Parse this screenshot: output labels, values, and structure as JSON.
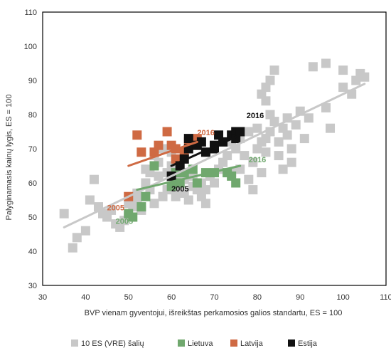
{
  "chart_data": {
    "type": "scatter",
    "title": "",
    "xlabel": "BVP vienam gyventojui, išreikštas perkamosios galios standartu, ES = 100",
    "ylabel": "Palyginamasis kainų lygis, ES = 100",
    "xlim": [
      30,
      110
    ],
    "ylim": [
      30,
      110
    ],
    "xticks": [
      "30",
      "40",
      "50",
      "60",
      "70",
      "80",
      "90",
      "100",
      "110"
    ],
    "yticks": [
      "30",
      "40",
      "50",
      "60",
      "70",
      "80",
      "90",
      "100",
      "110"
    ],
    "grid": false,
    "legend_position": "bottom",
    "series": [
      {
        "name": "10 ES (VRE) šalių",
        "color": "#c8c8c8",
        "points": [
          [
            35,
            51
          ],
          [
            37,
            41
          ],
          [
            38,
            44
          ],
          [
            40,
            46
          ],
          [
            41,
            55
          ],
          [
            42,
            61
          ],
          [
            43,
            53
          ],
          [
            44,
            51
          ],
          [
            45,
            50
          ],
          [
            46,
            52
          ],
          [
            47,
            48
          ],
          [
            48,
            47
          ],
          [
            49,
            49
          ],
          [
            50,
            50
          ],
          [
            50,
            54
          ],
          [
            51,
            53
          ],
          [
            52,
            55
          ],
          [
            52,
            57
          ],
          [
            53,
            52
          ],
          [
            54,
            60
          ],
          [
            54,
            64
          ],
          [
            55,
            58
          ],
          [
            55,
            63
          ],
          [
            56,
            54
          ],
          [
            56,
            68
          ],
          [
            57,
            62
          ],
          [
            57,
            66
          ],
          [
            58,
            56
          ],
          [
            58,
            70
          ],
          [
            59,
            58
          ],
          [
            59,
            63
          ],
          [
            60,
            60
          ],
          [
            60,
            65
          ],
          [
            60,
            69
          ],
          [
            61,
            56
          ],
          [
            61,
            62
          ],
          [
            62,
            58
          ],
          [
            62,
            60
          ],
          [
            63,
            57
          ],
          [
            63,
            61
          ],
          [
            64,
            55
          ],
          [
            65,
            59
          ],
          [
            65,
            62
          ],
          [
            66,
            58
          ],
          [
            67,
            56
          ],
          [
            67,
            60
          ],
          [
            68,
            54
          ],
          [
            68,
            58
          ],
          [
            69,
            62
          ],
          [
            70,
            60
          ],
          [
            71,
            64
          ],
          [
            72,
            66
          ],
          [
            73,
            68
          ],
          [
            74,
            63
          ],
          [
            74,
            72
          ],
          [
            75,
            70
          ],
          [
            76,
            64
          ],
          [
            76,
            73
          ],
          [
            77,
            68
          ],
          [
            78,
            75
          ],
          [
            78,
            61
          ],
          [
            79,
            58
          ],
          [
            79,
            66
          ],
          [
            80,
            70
          ],
          [
            80,
            76
          ],
          [
            81,
            63
          ],
          [
            81,
            72
          ],
          [
            81,
            86
          ],
          [
            82,
            69
          ],
          [
            82,
            73
          ],
          [
            82,
            84
          ],
          [
            82,
            88
          ],
          [
            83,
            75
          ],
          [
            83,
            80
          ],
          [
            83,
            90
          ],
          [
            84,
            78
          ],
          [
            84,
            93
          ],
          [
            85,
            68
          ],
          [
            85,
            72
          ],
          [
            86,
            64
          ],
          [
            86,
            76
          ],
          [
            87,
            74
          ],
          [
            87,
            79
          ],
          [
            88,
            66
          ],
          [
            88,
            70
          ],
          [
            89,
            77
          ],
          [
            90,
            81
          ],
          [
            91,
            73
          ],
          [
            92,
            79
          ],
          [
            93,
            94
          ],
          [
            96,
            82
          ],
          [
            96,
            95
          ],
          [
            97,
            76
          ],
          [
            100,
            88
          ],
          [
            100,
            93
          ],
          [
            102,
            86
          ],
          [
            103,
            90
          ],
          [
            104,
            92
          ],
          [
            105,
            91
          ]
        ]
      },
      {
        "name": "Lietuva",
        "color": "#70a86e",
        "points": [
          [
            50,
            51
          ],
          [
            51,
            50
          ],
          [
            53,
            53
          ],
          [
            54,
            56
          ],
          [
            56,
            65
          ],
          [
            60,
            59
          ],
          [
            61,
            63
          ],
          [
            62,
            60
          ],
          [
            63,
            63
          ],
          [
            65,
            64
          ],
          [
            66,
            60
          ],
          [
            68,
            63
          ],
          [
            70,
            63
          ],
          [
            73,
            63
          ],
          [
            74,
            62
          ],
          [
            75,
            60
          ]
        ]
      },
      {
        "name": "Latvija",
        "color": "#cf6a43",
        "points": [
          [
            50,
            56
          ],
          [
            52,
            74
          ],
          [
            53,
            69
          ],
          [
            56,
            69
          ],
          [
            57,
            71
          ],
          [
            59,
            75
          ],
          [
            60,
            71
          ],
          [
            61,
            70
          ],
          [
            61,
            67
          ],
          [
            63,
            69
          ],
          [
            64,
            72
          ],
          [
            66,
            73
          ]
        ]
      },
      {
        "name": "Estija",
        "color": "#111111",
        "points": [
          [
            60,
            62
          ],
          [
            62,
            65
          ],
          [
            63,
            67
          ],
          [
            64,
            73
          ],
          [
            64,
            70
          ],
          [
            66,
            71
          ],
          [
            67,
            72
          ],
          [
            68,
            69
          ],
          [
            70,
            70
          ],
          [
            70,
            71
          ],
          [
            71,
            74
          ],
          [
            72,
            72
          ],
          [
            74,
            74
          ],
          [
            75,
            75
          ],
          [
            75,
            73
          ],
          [
            76,
            75
          ]
        ]
      }
    ],
    "trendlines": [
      {
        "series": "10 ES (VRE) šalių",
        "color": "#c8c8c8",
        "from": [
          35,
          47
        ],
        "to": [
          105,
          89
        ]
      },
      {
        "series": "Latvija",
        "color": "#cf6a43",
        "from": [
          50,
          65
        ],
        "to": [
          66,
          72
        ]
      },
      {
        "series": "Lietuva",
        "color": "#70a86e",
        "from": [
          52,
          58
        ],
        "to": [
          76,
          65
        ]
      },
      {
        "series": "Estija",
        "color": "#111111",
        "from": [
          60,
          65
        ],
        "to": [
          76,
          74
        ]
      }
    ],
    "annotations": [
      {
        "text": "2016",
        "series": "Estija",
        "color": "#111111",
        "at": [
          77.5,
          79
        ]
      },
      {
        "text": "2016",
        "series": "Latvija",
        "color": "#cf6a43",
        "at": [
          66,
          74
        ]
      },
      {
        "text": "2016",
        "series": "Lietuva",
        "color": "#70a86e",
        "at": [
          78,
          66
        ]
      },
      {
        "text": "2005",
        "series": "Estija",
        "color": "#111111",
        "at": [
          60,
          57.5
        ]
      },
      {
        "text": "2005",
        "series": "Latvija",
        "color": "#cf6a43",
        "at": [
          45,
          52
        ]
      },
      {
        "text": "2005",
        "series": "Lietuva",
        "color": "#70a86e",
        "at": [
          47,
          48
        ]
      }
    ]
  }
}
